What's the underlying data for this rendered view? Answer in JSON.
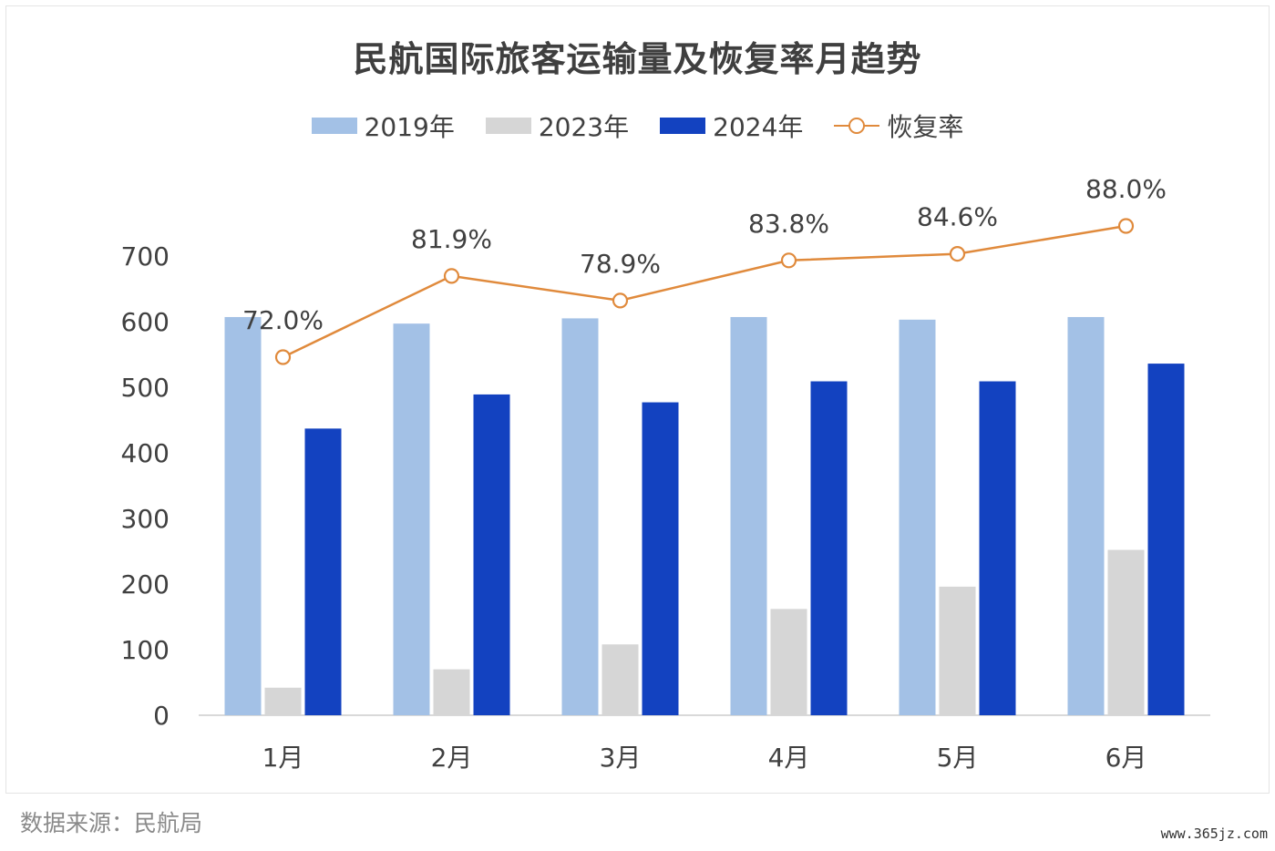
{
  "chart_data": {
    "type": "bar",
    "title": "民航国际旅客运输量及恢复率月趋势",
    "categories": [
      "1月",
      "2月",
      "3月",
      "4月",
      "5月",
      "6月"
    ],
    "series": [
      {
        "name": "2019年",
        "type": "bar",
        "color": "#a3c1e6",
        "values": [
          607,
          597,
          605,
          607,
          603,
          607
        ]
      },
      {
        "name": "2023年",
        "type": "bar",
        "color": "#d6d6d6",
        "values": [
          42,
          70,
          108,
          162,
          196,
          252
        ]
      },
      {
        "name": "2024年",
        "type": "bar",
        "color": "#1342c0",
        "values": [
          437,
          489,
          477,
          509,
          509,
          536
        ]
      },
      {
        "name": "恢复率",
        "type": "line",
        "color": "#e08a3c",
        "values": [
          72.0,
          81.9,
          78.9,
          83.8,
          84.6,
          88.0
        ],
        "labels": [
          "72.0%",
          "81.9%",
          "78.9%",
          "83.8%",
          "84.6%",
          "88.0%"
        ]
      }
    ],
    "yticks": [
      0,
      100,
      200,
      300,
      400,
      500,
      600,
      700
    ],
    "ylim": [
      0,
      700
    ],
    "grid": false,
    "legend_position": "top"
  },
  "source_text": "数据来源：民航局",
  "watermark_text": "www.365jz.com"
}
